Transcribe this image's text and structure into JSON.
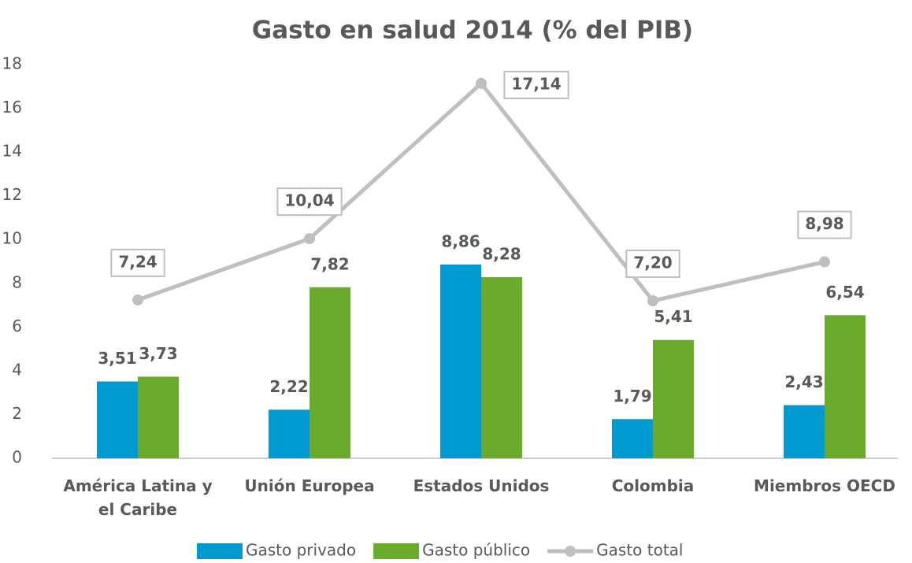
{
  "chart_data": {
    "type": "combo",
    "title": "Gasto en salud 2014 (% del PIB)",
    "categories": [
      "América Latina y el Caribe",
      "Unión Europea",
      "Estados Unidos",
      "Colombia",
      "Miembros OECD"
    ],
    "series": [
      {
        "name": "Gasto privado",
        "type": "bar",
        "color": "#0099d0",
        "values": [
          3.51,
          2.22,
          8.86,
          1.79,
          2.43
        ],
        "value_labels": [
          "3,51",
          "2,22",
          "8,86",
          "1,79",
          "2,43"
        ]
      },
      {
        "name": "Gasto público",
        "type": "bar",
        "color": "#6aab2e",
        "values": [
          3.73,
          7.82,
          8.28,
          5.41,
          6.54
        ],
        "value_labels": [
          "3,73",
          "7,82",
          "8,28",
          "5,41",
          "6,54"
        ]
      },
      {
        "name": "Gasto total",
        "type": "line",
        "color": "#bfbfbf",
        "values": [
          7.24,
          10.04,
          17.14,
          7.2,
          8.98
        ],
        "value_labels": [
          "7,24",
          "10,04",
          "17,14",
          "7,20",
          "8,98"
        ]
      }
    ],
    "ylim": [
      0,
      18
    ],
    "yticks": [
      0,
      2,
      4,
      6,
      8,
      10,
      12,
      14,
      16,
      18
    ],
    "grid": false,
    "legend": "bottom"
  }
}
